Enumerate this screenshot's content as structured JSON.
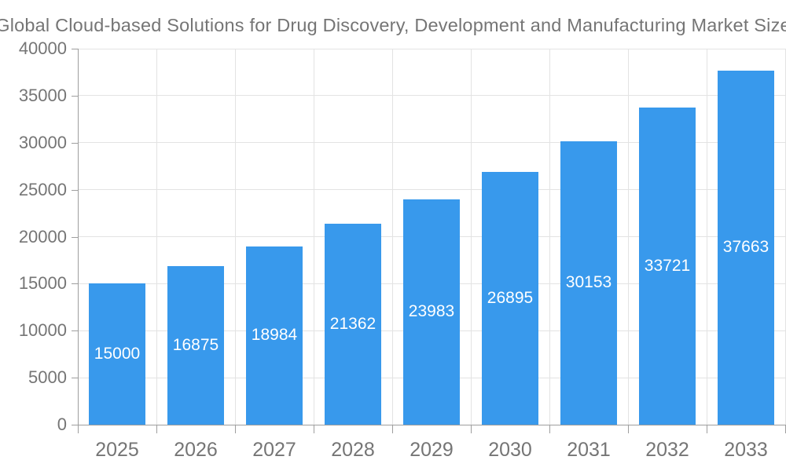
{
  "chart_data": {
    "type": "bar",
    "title": "Global Cloud-based Solutions for Drug Discovery, Development and Manufacturing Market Size",
    "categories": [
      "2025",
      "2026",
      "2027",
      "2028",
      "2029",
      "2030",
      "2031",
      "2032",
      "2033"
    ],
    "values": [
      15000,
      16875,
      18984,
      21362,
      23983,
      26895,
      30153,
      33721,
      37663
    ],
    "value_labels": [
      "15000",
      "16875",
      "18984",
      "21362",
      "23983",
      "26895",
      "30153",
      "33721",
      "37663"
    ],
    "xlabel": "",
    "ylabel": "",
    "ylim": [
      0,
      40000
    ],
    "yticks": [
      0,
      5000,
      10000,
      15000,
      20000,
      25000,
      30000,
      35000,
      40000
    ],
    "grid": true,
    "legend_position": "none",
    "bar_label_position": "inside-center",
    "bar_label_color": "#FFFFFF",
    "colors": {
      "bar": "#3899EC",
      "grid": "#E3E3E3",
      "axis": "#9E9E9E",
      "text": "#757575",
      "background": "#FFFFFF"
    }
  }
}
